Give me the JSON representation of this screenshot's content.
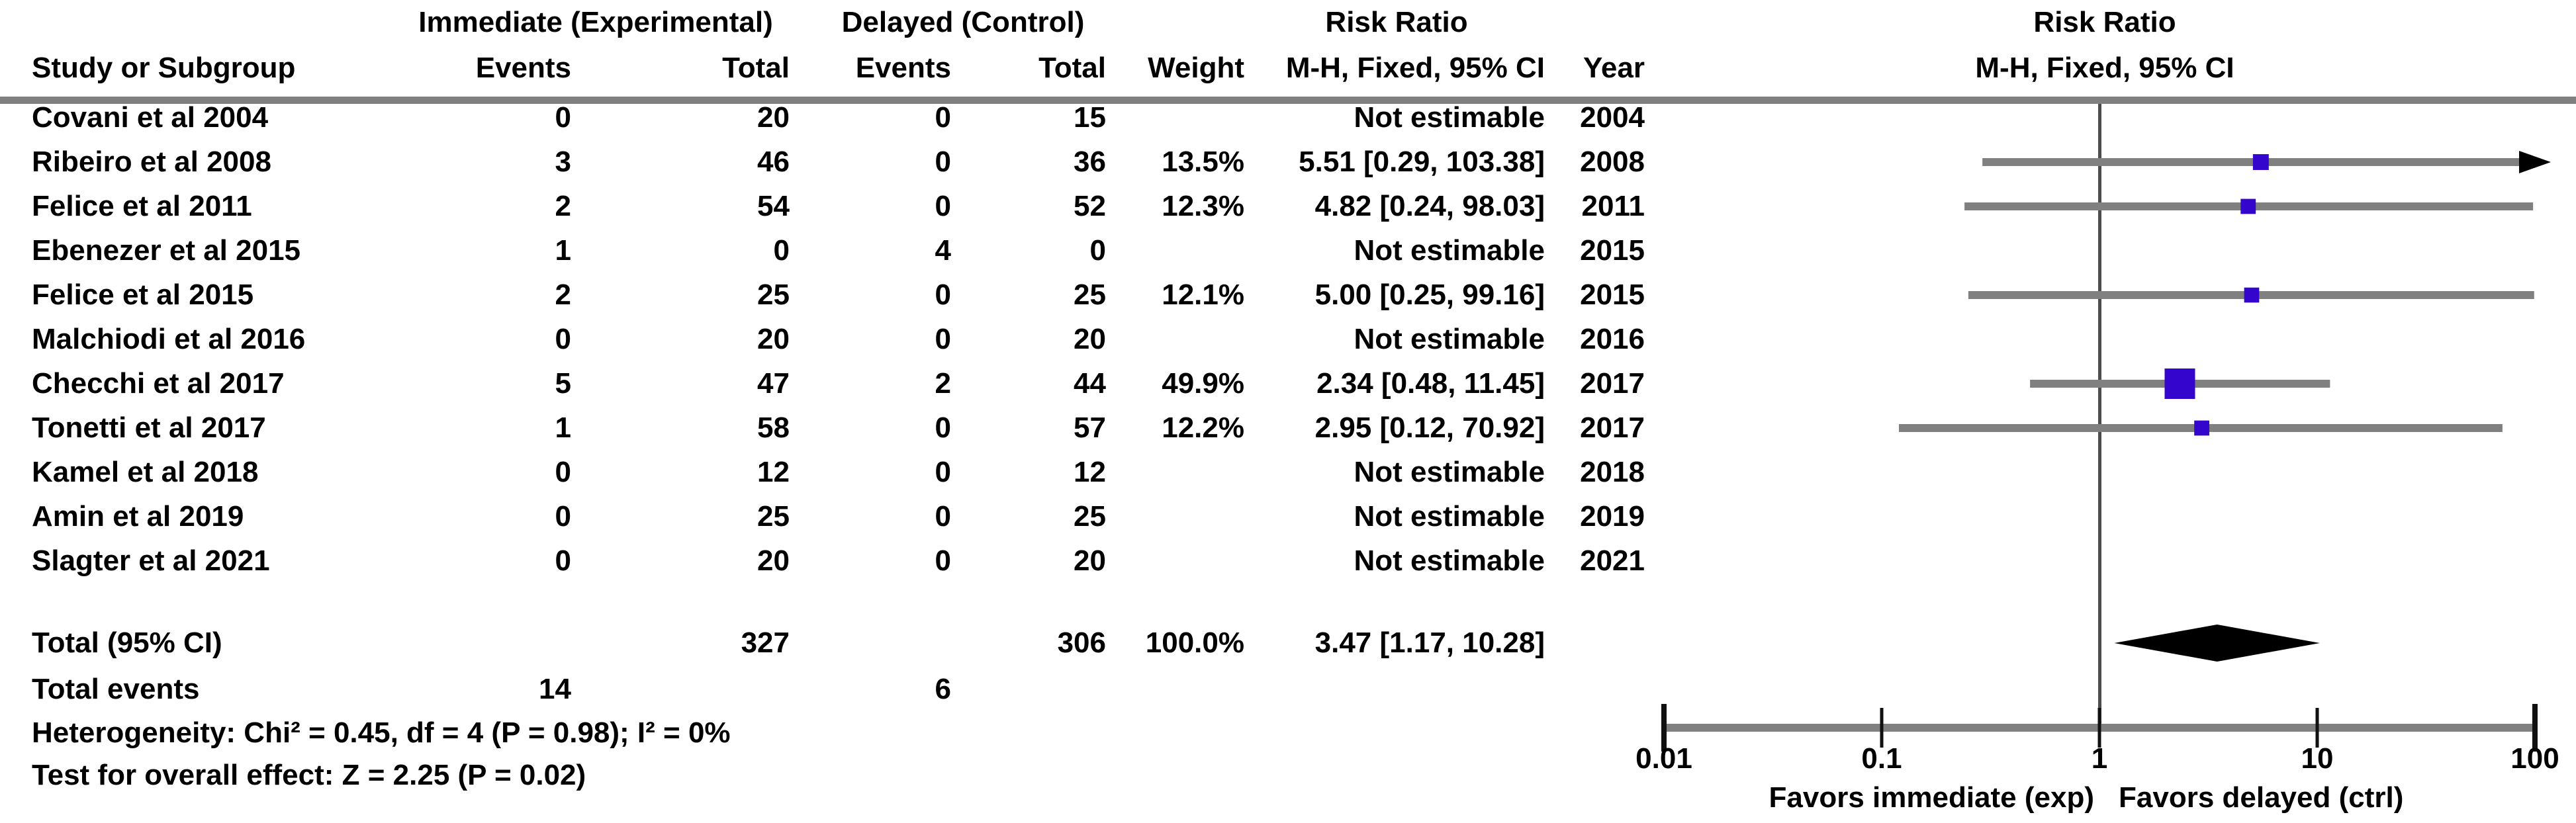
{
  "colors": {
    "marker": "#3405cd",
    "ci_line": "#808080",
    "axis_line": "#808080",
    "center_line": "#4d4d4d",
    "header_rule": "#808080",
    "tick": "#111111",
    "diamond": "#000000",
    "text": "#000000",
    "background": "#ffffff"
  },
  "table": {
    "group_headers": {
      "experimental": "Immediate (Experimental)",
      "control": "Delayed (Control)",
      "risk_ratio_left": "Risk Ratio",
      "risk_ratio_right": "Risk Ratio"
    },
    "column_headers": {
      "study": "Study or Subgroup",
      "events_exp": "Events",
      "total_exp": "Total",
      "events_ctrl": "Events",
      "total_ctrl": "Total",
      "weight": "Weight",
      "ci": "M-H, Fixed, 95% CI",
      "year": "Year",
      "ci_plot": "M-H, Fixed, 95% CI"
    },
    "rows": [
      {
        "study": "Covani et al 2004",
        "events_exp": "0",
        "total_exp": "20",
        "events_ctrl": "0",
        "total_ctrl": "15",
        "weight": "",
        "ci": "Not estimable",
        "year": "2004"
      },
      {
        "study": "Ribeiro et al 2008",
        "events_exp": "3",
        "total_exp": "46",
        "events_ctrl": "0",
        "total_ctrl": "36",
        "weight": "13.5%",
        "ci": "5.51 [0.29, 103.38]",
        "year": "2008"
      },
      {
        "study": "Felice et al 2011",
        "events_exp": "2",
        "total_exp": "54",
        "events_ctrl": "0",
        "total_ctrl": "52",
        "weight": "12.3%",
        "ci": "4.82 [0.24, 98.03]",
        "year": "2011"
      },
      {
        "study": "Ebenezer et al 2015",
        "events_exp": "1",
        "total_exp": "0",
        "events_ctrl": "4",
        "total_ctrl": "0",
        "weight": "",
        "ci": "Not estimable",
        "year": "2015"
      },
      {
        "study": "Felice et al 2015",
        "events_exp": "2",
        "total_exp": "25",
        "events_ctrl": "0",
        "total_ctrl": "25",
        "weight": "12.1%",
        "ci": "5.00 [0.25, 99.16]",
        "year": "2015"
      },
      {
        "study": "Malchiodi et al 2016",
        "events_exp": "0",
        "total_exp": "20",
        "events_ctrl": "0",
        "total_ctrl": "20",
        "weight": "",
        "ci": "Not estimable",
        "year": "2016"
      },
      {
        "study": "Checchi et al 2017",
        "events_exp": "5",
        "total_exp": "47",
        "events_ctrl": "2",
        "total_ctrl": "44",
        "weight": "49.9%",
        "ci": "2.34 [0.48, 11.45]",
        "year": "2017"
      },
      {
        "study": "Tonetti et al 2017",
        "events_exp": "1",
        "total_exp": "58",
        "events_ctrl": "0",
        "total_ctrl": "57",
        "weight": "12.2%",
        "ci": "2.95 [0.12, 70.92]",
        "year": "2017"
      },
      {
        "study": "Kamel et al 2018",
        "events_exp": "0",
        "total_exp": "12",
        "events_ctrl": "0",
        "total_ctrl": "12",
        "weight": "",
        "ci": "Not estimable",
        "year": "2018"
      },
      {
        "study": "Amin et al 2019",
        "events_exp": "0",
        "total_exp": "25",
        "events_ctrl": "0",
        "total_ctrl": "25",
        "weight": "",
        "ci": "Not estimable",
        "year": "2019"
      },
      {
        "study": "Slagter et al 2021",
        "events_exp": "0",
        "total_exp": "20",
        "events_ctrl": "0",
        "total_ctrl": "20",
        "weight": "",
        "ci": "Not estimable",
        "year": "2021"
      }
    ],
    "total_row": {
      "label": "Total (95% CI)",
      "total_exp": "327",
      "total_ctrl": "306",
      "weight": "100.0%",
      "ci": "3.47 [1.17, 10.28]"
    },
    "total_events": {
      "label": "Total events",
      "events_exp": "14",
      "events_ctrl": "6"
    },
    "heterogeneity": "Heterogeneity: Chi² = 0.45, df = 4 (P = 0.98); I² = 0%",
    "overall_effect": "Test for overall effect: Z = 2.25 (P = 0.02)"
  },
  "chart_data": {
    "type": "forest",
    "effect_measure": "Risk Ratio, M-H, Fixed, 95% CI",
    "x_axis": {
      "scale": "log10",
      "min": 0.01,
      "max": 100,
      "ticks": [
        0.01,
        0.1,
        1,
        10,
        100
      ],
      "tick_labels": [
        "0.01",
        "0.1",
        "1",
        "10",
        "100"
      ]
    },
    "footer_left": "Favors immediate (exp)",
    "footer_right": "Favors delayed (ctrl)",
    "studies": [
      {
        "name": "Covani et al 2004",
        "year": 2004,
        "estimable": false,
        "rr": null,
        "ci_low": null,
        "ci_high": null,
        "weight_pct": null
      },
      {
        "name": "Ribeiro et al 2008",
        "year": 2008,
        "estimable": true,
        "rr": 5.51,
        "ci_low": 0.29,
        "ci_high": 103.38,
        "weight_pct": 13.5
      },
      {
        "name": "Felice et al 2011",
        "year": 2011,
        "estimable": true,
        "rr": 4.82,
        "ci_low": 0.24,
        "ci_high": 98.03,
        "weight_pct": 12.3
      },
      {
        "name": "Ebenezer et al 2015",
        "year": 2015,
        "estimable": false,
        "rr": null,
        "ci_low": null,
        "ci_high": null,
        "weight_pct": null
      },
      {
        "name": "Felice et al 2015",
        "year": 2015,
        "estimable": true,
        "rr": 5.0,
        "ci_low": 0.25,
        "ci_high": 99.16,
        "weight_pct": 12.1
      },
      {
        "name": "Malchiodi et al 2016",
        "year": 2016,
        "estimable": false,
        "rr": null,
        "ci_low": null,
        "ci_high": null,
        "weight_pct": null
      },
      {
        "name": "Checchi et al 2017",
        "year": 2017,
        "estimable": true,
        "rr": 2.34,
        "ci_low": 0.48,
        "ci_high": 11.45,
        "weight_pct": 49.9
      },
      {
        "name": "Tonetti et al 2017",
        "year": 2017,
        "estimable": true,
        "rr": 2.95,
        "ci_low": 0.12,
        "ci_high": 70.92,
        "weight_pct": 12.2
      },
      {
        "name": "Kamel et al 2018",
        "year": 2018,
        "estimable": false,
        "rr": null,
        "ci_low": null,
        "ci_high": null,
        "weight_pct": null
      },
      {
        "name": "Amin et al 2019",
        "year": 2019,
        "estimable": false,
        "rr": null,
        "ci_low": null,
        "ci_high": null,
        "weight_pct": null
      },
      {
        "name": "Slagter et al 2021",
        "year": 2021,
        "estimable": false,
        "rr": null,
        "ci_low": null,
        "ci_high": null,
        "weight_pct": null
      }
    ],
    "overall": {
      "label": "Total (95% CI)",
      "rr": 3.47,
      "ci_low": 1.17,
      "ci_high": 10.28,
      "weight_pct": 100.0
    }
  }
}
